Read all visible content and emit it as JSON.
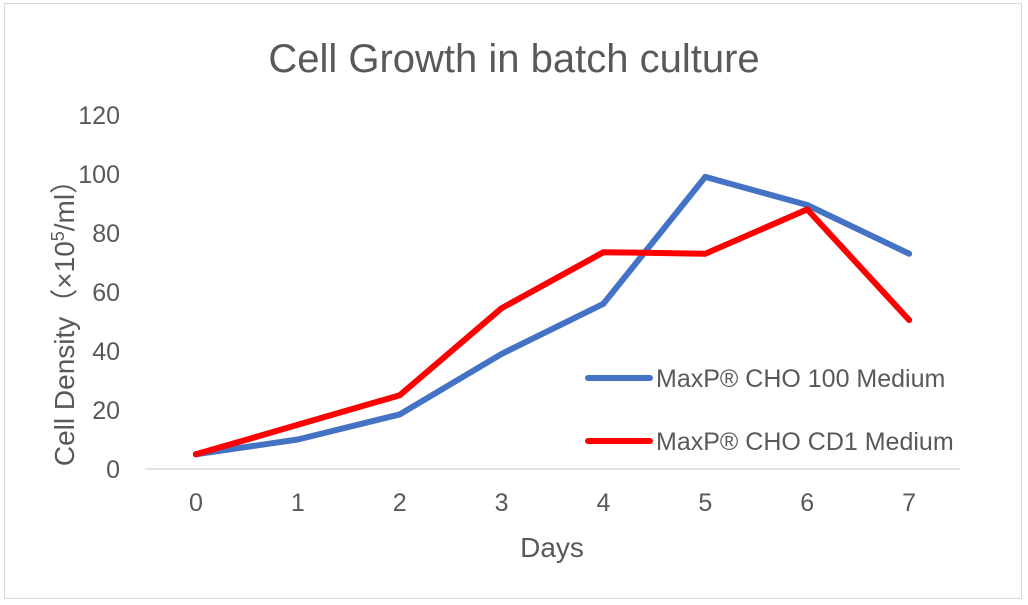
{
  "chart_data": {
    "type": "line",
    "title": "Cell Growth in batch culture",
    "xlabel": "Days",
    "ylabel_main": "Cell Density（×10",
    "ylabel_sup": "5",
    "ylabel_tail": "/ml）",
    "categories": [
      "0",
      "1",
      "2",
      "3",
      "4",
      "5",
      "6",
      "7"
    ],
    "x": [
      0,
      1,
      2,
      3,
      4,
      5,
      6,
      7
    ],
    "ylim": [
      0,
      120
    ],
    "yticks": [
      "0",
      "20",
      "40",
      "60",
      "80",
      "100",
      "120"
    ],
    "grid": false,
    "legend_position": "right",
    "series": [
      {
        "name": "MaxP® CHO 100 Medium",
        "color": "#4472C4",
        "values": [
          5,
          10,
          18.5,
          39,
          56,
          99,
          89.5,
          73
        ]
      },
      {
        "name": "MaxP® CHO CD1 Medium",
        "color": "#FF0000",
        "values": [
          5,
          15,
          25,
          54.5,
          73.5,
          73,
          88,
          50.5
        ]
      }
    ]
  }
}
